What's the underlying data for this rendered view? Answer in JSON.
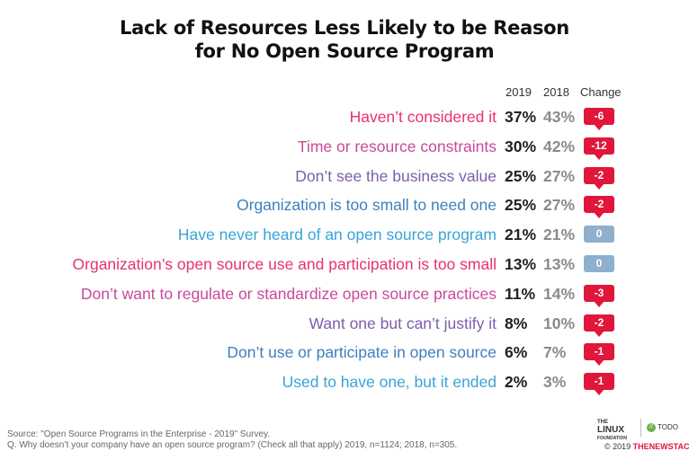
{
  "chart_data": {
    "type": "table",
    "title_line1": "Lack of Resources Less Likely to be Reason",
    "title_line2": "for No Open Source Program",
    "columns": [
      "2019",
      "2018",
      "Change"
    ],
    "rows": [
      {
        "label": "Haven’t considered it",
        "v2019": "37%",
        "v2018": "43%",
        "change": "-6",
        "color": "#e8336a"
      },
      {
        "label": "Time or resource constraints",
        "v2019": "30%",
        "v2018": "42%",
        "change": "-12",
        "color": "#c8499b"
      },
      {
        "label": "Don’t see the business value",
        "v2019": "25%",
        "v2018": "27%",
        "change": "-2",
        "color": "#7b5fac"
      },
      {
        "label": "Organization is too small to need one",
        "v2019": "25%",
        "v2018": "27%",
        "change": "-2",
        "color": "#3f7fc0"
      },
      {
        "label": "Have never heard of an open source program",
        "v2019": "21%",
        "v2018": "21%",
        "change": "0",
        "color": "#3aa3d8"
      },
      {
        "label": "Organization’s open source use and participation is too small",
        "v2019": "13%",
        "v2018": "13%",
        "change": "0",
        "color": "#e8336a"
      },
      {
        "label": "Don’t want to regulate or standardize open source practices",
        "v2019": "11%",
        "v2018": "14%",
        "change": "-3",
        "color": "#c8499b"
      },
      {
        "label": "Want one but can’t justify it",
        "v2019": "8%",
        "v2018": "10%",
        "change": "-2",
        "color": "#7b5fac"
      },
      {
        "label": "Don’t use or participate in open source",
        "v2019": "6%",
        "v2018": "7%",
        "change": "-1",
        "color": "#3f7fc0"
      },
      {
        "label": "Used to have one, but it ended",
        "v2019": "2%",
        "v2018": "3%",
        "change": "-1",
        "color": "#3aa3d8"
      }
    ],
    "badge_colors": {
      "negative": "#e0173a",
      "zero": "#8fb0cc"
    }
  },
  "footer": {
    "source": "Source: \"Open Source Programs in the Enterprise - 2019\" Survey.",
    "question": "Q. Why doesn’t your company have an open source program? (Check all that apply) 2019, n=1124; 2018, n=305."
  },
  "logos": {
    "lf_the": "THE",
    "lf_name": "LINUX",
    "lf_sub": "FOUNDATION",
    "todo_mark": "//",
    "todo_name": "TODO",
    "copyright": "© 2019",
    "tns": "THENEWSTACK"
  }
}
